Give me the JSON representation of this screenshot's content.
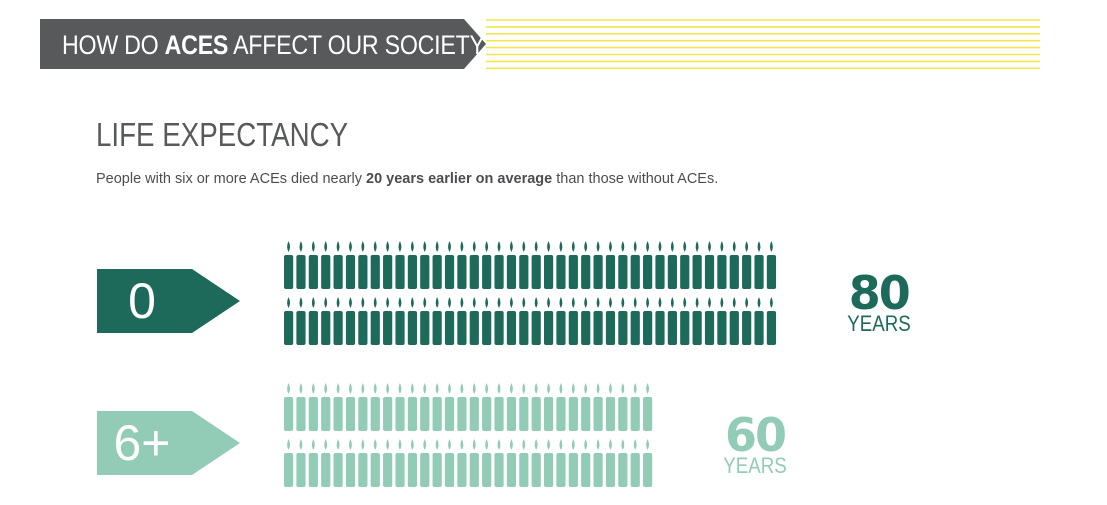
{
  "banner": {
    "title_pre": "HOW DO ",
    "title_bold": "ACES",
    "title_post": " AFFECT OUR SOCIETY?",
    "colors": {
      "bar": "#58595b",
      "stripes": "#f2e64b"
    }
  },
  "section": {
    "title": "LIFE EXPECTANCY",
    "subtitle_pre": "People with six or more ACEs died nearly ",
    "subtitle_bold": "20 years earlier on average",
    "subtitle_post": " than those without ACEs."
  },
  "chart_data": {
    "type": "bar",
    "unit_icon": "candle-icon",
    "categories": [
      "0",
      "6+"
    ],
    "values": [
      80,
      60
    ],
    "value_unit": "YEARS",
    "series": [
      {
        "category": "0",
        "value": 80,
        "label_number": "80",
        "label_unit": "YEARS",
        "color": "#1e6a5a"
      },
      {
        "category": "6+",
        "value": 60,
        "label_number": "60",
        "label_unit": "YEARS",
        "color": "#92ccb6"
      }
    ],
    "candles_per_row_per_year": 0.5
  }
}
